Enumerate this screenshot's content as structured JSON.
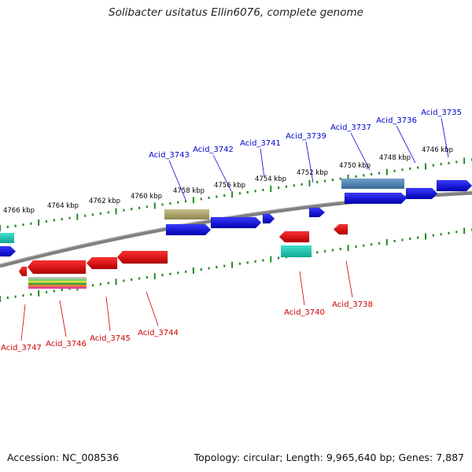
{
  "title": "Solibacter usitatus Ellin6076, complete genome",
  "footer": {
    "accession": "Accession: NC_008536",
    "summary": "Topology: circular; Length: 9,965,640 bp; Genes: 7,887"
  },
  "colors": {
    "forward_gene": "#0000e0",
    "reverse_gene": "#e00000",
    "forward_label": "#0000cc",
    "reverse_label": "#cc0000",
    "backbone": "#808080",
    "tick": "#228b22",
    "tick_label": "#000000"
  },
  "scale": {
    "labels": [
      "4746 kbp",
      "4748 kbp",
      "4750 kbp",
      "4752 kbp",
      "4754 kbp",
      "4756 kbp",
      "4758 kbp",
      "4760 kbp",
      "4762 kbp",
      "4764 kbp",
      "4766 kbp"
    ]
  },
  "forward_genes": [
    "Acid_3735",
    "Acid_3736",
    "Acid_3737",
    "Acid_3739",
    "Acid_3741",
    "Acid_3742",
    "Acid_3743"
  ],
  "reverse_genes": [
    "Acid_3738",
    "Acid_3740",
    "Acid_3744",
    "Acid_3745",
    "Acid_3746",
    "Acid_3747"
  ]
}
